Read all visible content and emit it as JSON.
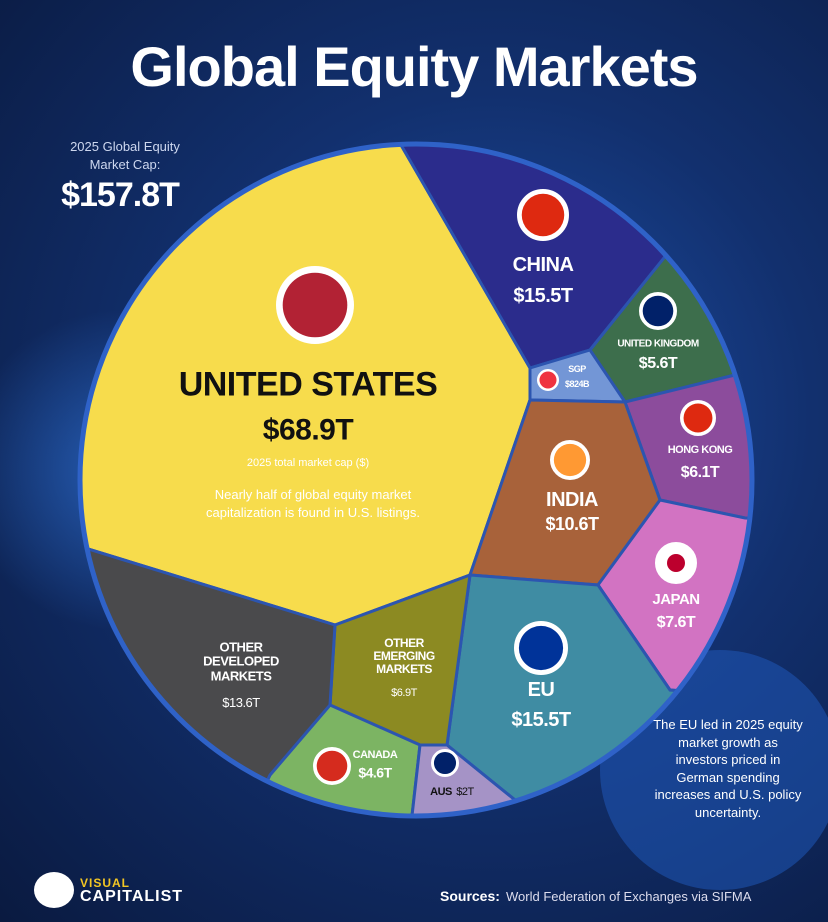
{
  "title": "Global Equity Markets",
  "total_caption": "2025 Global Equity Market Cap:",
  "total": {
    "value": 157.8,
    "label": "$157.8T"
  },
  "chart_data": {
    "type": "voronoi",
    "categories": [
      "UNITED STATES",
      "CHINA",
      "UNITED KINGDOM",
      "SGP",
      "HONG KONG",
      "INDIA",
      "JAPAN",
      "EU",
      "OTHER EMERGING MARKETS",
      "CANADA",
      "AUS",
      "OTHER DEVELOPED MARKETS"
    ],
    "values": [
      68.9,
      15.5,
      5.6,
      0.824,
      6.1,
      10.6,
      7.6,
      15.5,
      6.9,
      4.6,
      2,
      13.6
    ],
    "value_labels": [
      "$68.9T",
      "$15.5T",
      "$5.6T",
      "$824B",
      "$6.1T",
      "$10.6T",
      "$7.6T",
      "$15.5T",
      "$6.9T",
      "$4.6T",
      "$2T",
      "$13.6T"
    ],
    "colors": [
      "#f7dc4c",
      "#2b2c8c",
      "#3d6e4c",
      "#7396d6",
      "#8c4c9c",
      "#a8623a",
      "#d273c2",
      "#3f8ca3",
      "#8c8a22",
      "#7cb463",
      "#a593c6",
      "#4a4a4c"
    ]
  },
  "us_caption": "2025 total market cap ($)",
  "us_note": "Nearly half of global equity market capitalization is found in U.S. listings.",
  "eu_note": "The EU led in 2025 equity market growth as investors priced in German spending increases and U.S. policy uncertainty.",
  "logo": [
    "VISUAL",
    "CAPITALIST"
  ],
  "sources_label": "Sources:",
  "sources": "World Federation of Exchanges via SIFMA"
}
